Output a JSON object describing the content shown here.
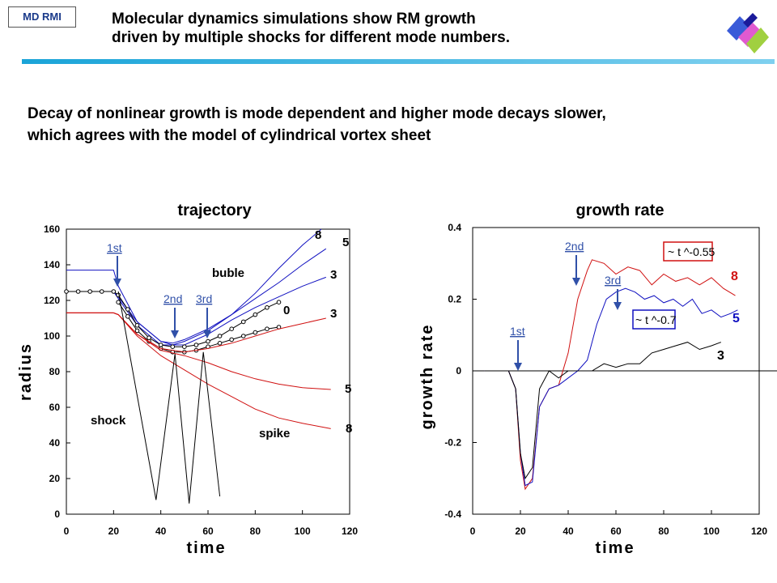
{
  "header": {
    "tag": "MD RMI",
    "title_line1": "Molecular dynamics simulations show RM growth",
    "title_line2": "driven by multiple shocks for different mode numbers.",
    "subtitle_line1": "Decay of nonlinear growth is mode dependent and higher mode decays slower,",
    "subtitle_line2": "which agrees with the model of cylindrical vortex sheet"
  },
  "colors": {
    "accent_bar": "#1aa4d8",
    "blue": "#1010c0",
    "red": "#d01010",
    "black": "#000000",
    "arrow": "#3050a8",
    "label_blue": "#3050a8"
  },
  "chart_data": [
    {
      "type": "line",
      "title": "trajectory",
      "xlabel": "time",
      "ylabel": "radius",
      "xlim": [
        0,
        120
      ],
      "ylim": [
        0,
        160
      ],
      "xticks": [
        "0",
        "20",
        "40",
        "60",
        "80",
        "100",
        "120"
      ],
      "yticks": [
        "0",
        "20",
        "40",
        "60",
        "80",
        "100",
        "120",
        "140",
        "160"
      ],
      "grid": false,
      "annotations": {
        "first": "1st",
        "second": "2nd",
        "third": "3rd",
        "bubble": "buble",
        "spike": "spike",
        "shock": "shock"
      },
      "series": [
        {
          "name": "8",
          "color": "#1010c0",
          "x": [
            0,
            20,
            22,
            30,
            40,
            45,
            50,
            60,
            70,
            80,
            90,
            100,
            108
          ],
          "y": [
            137,
            137,
            128,
            108,
            97,
            95,
            97,
            103,
            112,
            124,
            138,
            151,
            160
          ]
        },
        {
          "name": "5",
          "color": "#1010c0",
          "x": [
            0,
            20,
            22,
            30,
            40,
            45,
            50,
            60,
            70,
            80,
            90,
            100,
            110
          ],
          "y": [
            125,
            125,
            122,
            108,
            97,
            96,
            98,
            104,
            112,
            121,
            130,
            140,
            149
          ]
        },
        {
          "name": "3",
          "color": "#1010c0",
          "x": [
            0,
            20,
            22,
            30,
            40,
            50,
            60,
            70,
            80,
            90,
            100,
            110
          ],
          "y": [
            125,
            125,
            121,
            106,
            95,
            95,
            101,
            109,
            116,
            122,
            128,
            133
          ]
        },
        {
          "name": "0",
          "color": "#000000",
          "markers": true,
          "x": [
            0,
            5,
            10,
            15,
            20,
            22,
            26,
            30,
            35,
            40,
            45,
            50,
            55,
            60,
            65,
            70,
            75,
            80,
            85,
            90
          ],
          "y": [
            125,
            125,
            125,
            125,
            125,
            123,
            115,
            106,
            99,
            95,
            94,
            94,
            95,
            97,
            100,
            104,
            108,
            112,
            116,
            119
          ]
        },
        {
          "name": "0 (lower)",
          "color": "#000000",
          "markers": true,
          "x": [
            22,
            26,
            30,
            35,
            40,
            45,
            50,
            55,
            60,
            65,
            70,
            75,
            80,
            85,
            90
          ],
          "y": [
            119,
            111,
            103,
            97,
            93,
            91,
            91,
            92,
            94,
            96,
            98,
            100,
            102,
            104,
            105
          ]
        },
        {
          "name": "3",
          "color": "#d01010",
          "x": [
            0,
            20,
            22,
            30,
            40,
            50,
            60,
            70,
            80,
            90,
            100,
            110
          ],
          "y": [
            113,
            113,
            112,
            101,
            93,
            91,
            93,
            96,
            100,
            104,
            107,
            110
          ]
        },
        {
          "name": "5",
          "color": "#d01010",
          "x": [
            0,
            20,
            22,
            30,
            40,
            50,
            60,
            70,
            80,
            90,
            100,
            112
          ],
          "y": [
            113,
            113,
            112,
            101,
            92,
            89,
            85,
            80,
            76,
            73,
            71,
            70
          ]
        },
        {
          "name": "8",
          "color": "#d01010",
          "x": [
            0,
            20,
            22,
            30,
            40,
            50,
            60,
            70,
            80,
            90,
            100,
            112
          ],
          "y": [
            113,
            113,
            112,
            100,
            89,
            81,
            73,
            66,
            59,
            54,
            51,
            48
          ]
        },
        {
          "name": "shock",
          "color": "#000000",
          "x": [
            22,
            38,
            46,
            52,
            58,
            65
          ],
          "y": [
            125,
            8,
            90,
            6,
            91,
            10
          ]
        }
      ]
    },
    {
      "type": "line",
      "title": "growth rate",
      "xlabel": "time",
      "ylabel": "growth rate",
      "xlim": [
        0,
        120
      ],
      "ylim": [
        -0.4,
        0.4
      ],
      "xticks": [
        "0",
        "20",
        "40",
        "60",
        "80",
        "100",
        "120"
      ],
      "yticks": [
        "-0.4",
        "-0.2",
        "0",
        "0.2",
        "0.4"
      ],
      "grid": false,
      "annotations": {
        "first": "1st",
        "second": "2nd",
        "third": "3rd",
        "fit_red": "~ t ^-0.55",
        "fit_blue": "~ t ^-0.7"
      },
      "series": [
        {
          "name": "8",
          "color": "#d01010",
          "x": [
            5,
            10,
            15,
            18,
            20,
            22,
            25,
            28,
            32,
            36,
            40,
            44,
            48,
            50,
            55,
            60,
            65,
            70,
            75,
            80,
            85,
            90,
            95,
            100,
            105,
            110
          ],
          "y": [
            0,
            0,
            0,
            -0.05,
            -0.25,
            -0.33,
            -0.3,
            -0.1,
            -0.05,
            -0.04,
            0.05,
            0.2,
            0.28,
            0.31,
            0.3,
            0.27,
            0.29,
            0.28,
            0.24,
            0.27,
            0.25,
            0.26,
            0.24,
            0.26,
            0.23,
            0.21
          ]
        },
        {
          "name": "5",
          "color": "#1010c0",
          "x": [
            5,
            10,
            15,
            18,
            20,
            22,
            25,
            28,
            32,
            36,
            40,
            44,
            48,
            52,
            56,
            60,
            64,
            68,
            72,
            76,
            80,
            84,
            88,
            92,
            96,
            100,
            104,
            108,
            111
          ],
          "y": [
            0,
            0,
            0,
            -0.05,
            -0.23,
            -0.32,
            -0.31,
            -0.1,
            -0.05,
            -0.04,
            -0.02,
            0,
            0.03,
            0.13,
            0.2,
            0.22,
            0.23,
            0.22,
            0.2,
            0.21,
            0.19,
            0.2,
            0.18,
            0.2,
            0.16,
            0.17,
            0.15,
            0.16,
            0.17
          ]
        },
        {
          "name": "3",
          "color": "#000000",
          "x": [
            5,
            10,
            15,
            18,
            20,
            22,
            25,
            28,
            32,
            36,
            40,
            45,
            50,
            55,
            60,
            65,
            70,
            75,
            80,
            85,
            90,
            95,
            100,
            104
          ],
          "y": [
            0,
            0,
            0,
            -0.05,
            -0.23,
            -0.3,
            -0.27,
            -0.05,
            0,
            -0.02,
            0,
            0,
            0,
            0.02,
            0.01,
            0.02,
            0.02,
            0.05,
            0.06,
            0.07,
            0.08,
            0.06,
            0.07,
            0.08
          ]
        }
      ]
    }
  ]
}
